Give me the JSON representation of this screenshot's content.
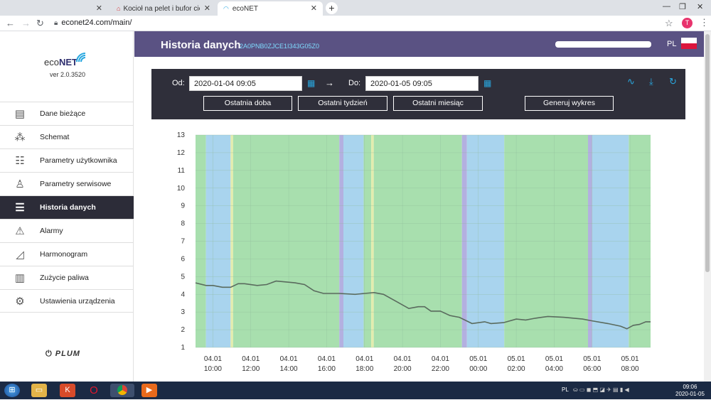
{
  "browser": {
    "tabs": [
      {
        "title": "",
        "active": false
      },
      {
        "title": "Kocioł na pelet i bufor ciepła - K...",
        "active": false
      },
      {
        "title": "ecoNET",
        "active": true
      }
    ],
    "url": "econet24.com/main/",
    "profile_initial": "T"
  },
  "sidebar": {
    "logo_prefix": "eco",
    "logo_brand": "NET",
    "version": "ver 2.0.3520",
    "items": [
      {
        "label": "Dane bieżące",
        "icon": "document-icon",
        "active": false
      },
      {
        "label": "Schemat",
        "icon": "schema-icon",
        "active": false
      },
      {
        "label": "Parametry użytkownika",
        "icon": "user-params-icon",
        "active": false
      },
      {
        "label": "Parametry serwisowe",
        "icon": "service-icon",
        "active": false
      },
      {
        "label": "Historia danych",
        "icon": "history-icon",
        "active": true
      },
      {
        "label": "Alarmy",
        "icon": "warning-icon",
        "active": false
      },
      {
        "label": "Harmonogram",
        "icon": "schedule-icon",
        "active": false
      },
      {
        "label": "Zużycie paliwa",
        "icon": "fuel-icon",
        "active": false
      },
      {
        "label": "Ustawienia urządzenia",
        "icon": "gear-icon",
        "active": false
      }
    ],
    "footer_brand": "PLUM"
  },
  "header": {
    "title": "Historia danych",
    "device_id": "2A0PNB0ZJCE1I343G05Z0",
    "lang": "PL"
  },
  "controls": {
    "from_label": "Od:",
    "from_value": "2020-01-04 09:05",
    "arrow": "→",
    "to_label": "Do:",
    "to_value": "2020-01-05 09:05",
    "buttons": {
      "last_day": "Ostatnia doba",
      "last_week": "Ostatni tydzień",
      "last_month": "Ostatni miesiąc",
      "generate": "Generuj wykres"
    },
    "tool_icons": [
      "chart-lines-icon",
      "download-icon",
      "refresh-icon"
    ]
  },
  "chart_data": {
    "type": "line",
    "title": "",
    "xlabel": "",
    "ylabel": "",
    "ylim": [
      1,
      13
    ],
    "yticks": [
      1,
      2,
      3,
      4,
      5,
      6,
      7,
      8,
      9,
      10,
      11,
      12,
      13
    ],
    "xlim": [
      "2020-01-04 09:05",
      "2020-01-05 09:05"
    ],
    "xticks": [
      {
        "day": "04.01",
        "time": "10:00"
      },
      {
        "day": "04.01",
        "time": "12:00"
      },
      {
        "day": "04.01",
        "time": "14:00"
      },
      {
        "day": "04.01",
        "time": "16:00"
      },
      {
        "day": "04.01",
        "time": "18:00"
      },
      {
        "day": "04.01",
        "time": "20:00"
      },
      {
        "day": "04.01",
        "time": "22:00"
      },
      {
        "day": "05.01",
        "time": "00:00"
      },
      {
        "day": "05.01",
        "time": "02:00"
      },
      {
        "day": "05.01",
        "time": "04:00"
      },
      {
        "day": "05.01",
        "time": "06:00"
      },
      {
        "day": "05.01",
        "time": "08:00"
      }
    ],
    "state_bands": [
      {
        "start": "2020-01-04 09:05",
        "end": "2020-01-04 09:38",
        "color": "#a8dfae"
      },
      {
        "start": "2020-01-04 09:38",
        "end": "2020-01-04 10:56",
        "color": "#a9d4ee"
      },
      {
        "start": "2020-01-04 10:56",
        "end": "2020-01-04 11:04",
        "color": "#e3ecae"
      },
      {
        "start": "2020-01-04 11:04",
        "end": "2020-01-04 16:40",
        "color": "#a8dfae"
      },
      {
        "start": "2020-01-04 16:40",
        "end": "2020-01-04 16:53",
        "color": "#b3b0e0"
      },
      {
        "start": "2020-01-04 16:53",
        "end": "2020-01-04 17:57",
        "color": "#a9d4ee"
      },
      {
        "start": "2020-01-04 17:57",
        "end": "2020-01-04 18:21",
        "color": "#a8dfae"
      },
      {
        "start": "2020-01-04 18:21",
        "end": "2020-01-04 18:29",
        "color": "#e3ecae"
      },
      {
        "start": "2020-01-04 18:29",
        "end": "2020-01-04 23:08",
        "color": "#a8dfae"
      },
      {
        "start": "2020-01-04 23:08",
        "end": "2020-01-04 23:24",
        "color": "#b3b0e0"
      },
      {
        "start": "2020-01-04 23:24",
        "end": "2020-01-05 01:22",
        "color": "#a9d4ee"
      },
      {
        "start": "2020-01-05 01:22",
        "end": "2020-01-05 05:47",
        "color": "#a8dfae"
      },
      {
        "start": "2020-01-05 05:47",
        "end": "2020-01-05 06:00",
        "color": "#b3b0e0"
      },
      {
        "start": "2020-01-05 06:00",
        "end": "2020-01-05 07:56",
        "color": "#a9d4ee"
      },
      {
        "start": "2020-01-05 07:56",
        "end": "2020-01-05 09:05",
        "color": "#a8dfae"
      }
    ],
    "series": [
      {
        "color": "#5a6b5e",
        "points": [
          [
            "2020-01-04 09:05",
            4.65
          ],
          [
            "2020-01-04 09:38",
            4.5
          ],
          [
            "2020-01-04 10:00",
            4.5
          ],
          [
            "2020-01-04 10:30",
            4.4
          ],
          [
            "2020-01-04 10:56",
            4.4
          ],
          [
            "2020-01-04 11:20",
            4.6
          ],
          [
            "2020-01-04 11:40",
            4.6
          ],
          [
            "2020-01-04 12:20",
            4.5
          ],
          [
            "2020-01-04 12:50",
            4.55
          ],
          [
            "2020-01-04 13:20",
            4.75
          ],
          [
            "2020-01-04 13:50",
            4.7
          ],
          [
            "2020-01-04 14:20",
            4.65
          ],
          [
            "2020-01-04 14:50",
            4.55
          ],
          [
            "2020-01-04 15:20",
            4.2
          ],
          [
            "2020-01-04 15:50",
            4.05
          ],
          [
            "2020-01-04 16:40",
            4.05
          ],
          [
            "2020-01-04 17:30",
            4.0
          ],
          [
            "2020-01-04 18:00",
            4.05
          ],
          [
            "2020-01-04 18:30",
            4.1
          ],
          [
            "2020-01-04 19:00",
            4.0
          ],
          [
            "2020-01-04 19:40",
            3.6
          ],
          [
            "2020-01-04 20:20",
            3.2
          ],
          [
            "2020-01-04 20:50",
            3.3
          ],
          [
            "2020-01-04 21:10",
            3.3
          ],
          [
            "2020-01-04 21:30",
            3.05
          ],
          [
            "2020-01-04 22:00",
            3.05
          ],
          [
            "2020-01-04 22:30",
            2.8
          ],
          [
            "2020-01-04 23:00",
            2.7
          ],
          [
            "2020-01-04 23:40",
            2.35
          ],
          [
            "2020-01-05 00:20",
            2.45
          ],
          [
            "2020-01-05 00:40",
            2.35
          ],
          [
            "2020-01-05 01:20",
            2.4
          ],
          [
            "2020-01-05 02:00",
            2.6
          ],
          [
            "2020-01-05 02:30",
            2.55
          ],
          [
            "2020-01-05 03:00",
            2.65
          ],
          [
            "2020-01-05 03:40",
            2.75
          ],
          [
            "2020-01-05 04:30",
            2.7
          ],
          [
            "2020-01-05 05:30",
            2.6
          ],
          [
            "2020-01-05 06:00",
            2.5
          ],
          [
            "2020-01-05 06:50",
            2.35
          ],
          [
            "2020-01-05 07:30",
            2.2
          ],
          [
            "2020-01-05 07:50",
            2.05
          ],
          [
            "2020-01-05 08:10",
            2.25
          ],
          [
            "2020-01-05 08:30",
            2.3
          ],
          [
            "2020-01-05 08:50",
            2.45
          ],
          [
            "2020-01-05 09:05",
            2.45
          ]
        ]
      }
    ],
    "grid": true,
    "legend": "none"
  },
  "taskbar": {
    "lang": "PL",
    "time": "09:06",
    "date": "2020-01-05"
  }
}
